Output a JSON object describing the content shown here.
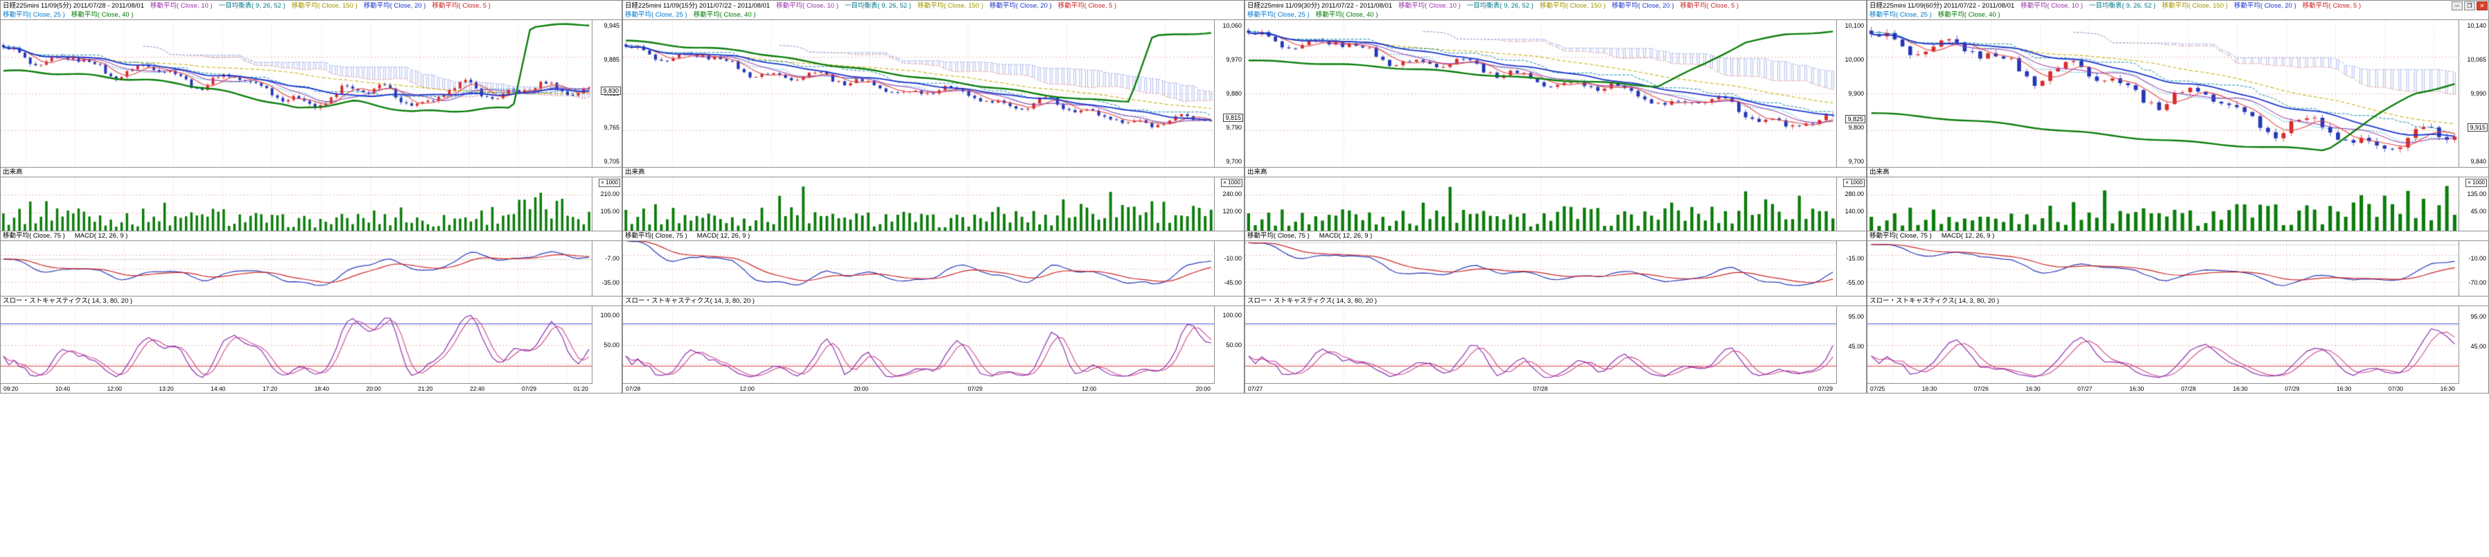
{
  "window_controls": {
    "minimize": "─",
    "restore": "❐",
    "close": "✕"
  },
  "colors": {
    "candle_up": "#d92b2b",
    "candle_down": "#2438b8",
    "ma_fast": "#e04444",
    "ma_mid": "#1a35cc",
    "ma_purple": "#9933aa",
    "ma_slow": "#c9b920",
    "ichimoku1": "#00a0b8",
    "ichimoku2": "#0080a0",
    "cloud_bull": "#e07878",
    "cloud_bear": "#7888dd",
    "overlay_green": "#0b7d0b",
    "volume_bar": "#0b7d0b",
    "macd_line": "#2438b8",
    "macd_signal": "#cc2222",
    "stoch_k": "#8a2fb0",
    "stoch_d": "#cc4488",
    "stoch_upper": "#4455dd",
    "stoch_lower": "#dd4444",
    "grid": "#e9b6b6"
  },
  "panels": [
    {
      "title": "日経225mini 11/09(5分) 2011/07/28 - 2011/08/01",
      "header1": [
        {
          "text": "日経225mini 11/09(5分) 2011/07/28 - 2011/08/01",
          "color": "#000000"
        },
        {
          "text": "移動平均( Close, 10 )",
          "color": "#9933aa"
        },
        {
          "text": "一目均衡表( 9, 26, 52 )",
          "color": "#007788"
        },
        {
          "text": "移動平均( Close, 150 )",
          "color": "#a09500"
        },
        {
          "text": "移動平均( Close, 20 )",
          "color": "#1a35cc"
        },
        {
          "text": "移動平均( Close, 5 )",
          "color": "#cc2222"
        }
      ],
      "header2": [
        {
          "text": "移動平均( Close, 25 )",
          "color": "#0077cc"
        },
        {
          "text": "移動平均( Close, 40 )",
          "color": "#007700"
        }
      ],
      "price_axis": [
        {
          "text": "9,945",
          "f": 0
        },
        {
          "text": "9,885",
          "f": 0.25
        },
        {
          "text": "9,825",
          "f": 0.5
        },
        {
          "text": "9,765",
          "f": 0.75
        },
        {
          "text": "9,705",
          "f": 1
        }
      ],
      "last_price": {
        "text": "9,830",
        "f": 0.48
      },
      "volume_label": "出来高",
      "volume_unit": "× 1000",
      "volume_axis": [
        {
          "text": "210.00",
          "f": 0.3
        },
        {
          "text": "105.00",
          "f": 0.65
        }
      ],
      "macd_label": [
        {
          "text": "移動平均( Close, 75 )",
          "color": "#000000"
        },
        {
          "text": "MACD( 12, 26, 9 )",
          "color": "#000000"
        }
      ],
      "macd_axis": [
        {
          "text": "-7.00",
          "f": 0.3
        },
        {
          "text": "-35.00",
          "f": 0.78
        }
      ],
      "stoch_label": "スロー・ストキャスティクス( 14, 3, 80, 20 )",
      "stoch_axis": [
        {
          "text": "100.00",
          "f": 0.08
        },
        {
          "text": "50.00",
          "f": 0.5
        }
      ],
      "times": [
        "09:20",
        "10:40",
        "12:00",
        "13:20",
        "14:40",
        "17:20",
        "18:40",
        "20:00",
        "21:20",
        "22:40",
        "07/29",
        "01:20"
      ]
    },
    {
      "title": "日経225mini 11/09(15分) 2011/07/22 - 2011/08/01",
      "header1": [
        {
          "text": "日経225mini 11/09(15分) 2011/07/22 - 2011/08/01",
          "color": "#000000"
        },
        {
          "text": "移動平均( Close, 10 )",
          "color": "#9933aa"
        },
        {
          "text": "一目均衡表( 9, 26, 52 )",
          "color": "#007788"
        },
        {
          "text": "移動平均( Close, 150 )",
          "color": "#a09500"
        },
        {
          "text": "移動平均( Close, 20 )",
          "color": "#1a35cc"
        },
        {
          "text": "移動平均( Close, 5 )",
          "color": "#cc2222"
        }
      ],
      "header2": [
        {
          "text": "移動平均( Close, 25 )",
          "color": "#0077cc"
        },
        {
          "text": "移動平均( Close, 40 )",
          "color": "#007700"
        }
      ],
      "price_axis": [
        {
          "text": "10,060",
          "f": 0
        },
        {
          "text": "9,970",
          "f": 0.25
        },
        {
          "text": "9,880",
          "f": 0.5
        },
        {
          "text": "9,790",
          "f": 0.75
        },
        {
          "text": "9,700",
          "f": 1
        }
      ],
      "last_price": {
        "text": "9,815",
        "f": 0.68
      },
      "volume_label": "出来高",
      "volume_unit": "× 1000",
      "volume_axis": [
        {
          "text": "240.00",
          "f": 0.3
        },
        {
          "text": "120.00",
          "f": 0.65
        }
      ],
      "macd_label": [
        {
          "text": "移動平均( Close, 75 )",
          "color": "#000000"
        },
        {
          "text": "MACD( 12, 26, 9 )",
          "color": "#000000"
        }
      ],
      "macd_axis": [
        {
          "text": "-10.00",
          "f": 0.3
        },
        {
          "text": "-45.00",
          "f": 0.78
        }
      ],
      "stoch_label": "スロー・ストキャスティクス( 14, 3, 80, 20 )",
      "stoch_axis": [
        {
          "text": "100.00",
          "f": 0.08
        },
        {
          "text": "50.00",
          "f": 0.5
        }
      ],
      "times": [
        "07/28",
        "12:00",
        "20:00",
        "07/29",
        "12:00",
        "20:00"
      ]
    },
    {
      "title": "日経225mini 11/09(30分) 2011/07/22 - 2011/08/01",
      "header1": [
        {
          "text": "日経225mini 11/09(30分) 2011/07/22 - 2011/08/01",
          "color": "#000000"
        },
        {
          "text": "移動平均( Close, 10 )",
          "color": "#9933aa"
        },
        {
          "text": "一目均衡表( 9, 26, 52 )",
          "color": "#007788"
        },
        {
          "text": "移動平均( Close, 150 )",
          "color": "#a09500"
        },
        {
          "text": "移動平均( Close, 20 )",
          "color": "#1a35cc"
        },
        {
          "text": "移動平均( Close, 5 )",
          "color": "#cc2222"
        }
      ],
      "header2": [
        {
          "text": "移動平均( Close, 25 )",
          "color": "#0077cc"
        },
        {
          "text": "移動平均( Close, 40 )",
          "color": "#007700"
        }
      ],
      "price_axis": [
        {
          "text": "10,100",
          "f": 0
        },
        {
          "text": "10,000",
          "f": 0.25
        },
        {
          "text": "9,900",
          "f": 0.5
        },
        {
          "text": "9,800",
          "f": 0.75
        },
        {
          "text": "9,700",
          "f": 1
        }
      ],
      "last_price": {
        "text": "9,825",
        "f": 0.69
      },
      "volume_label": "出来高",
      "volume_unit": "× 1000",
      "volume_axis": [
        {
          "text": "280.00",
          "f": 0.3
        },
        {
          "text": "140.00",
          "f": 0.65
        }
      ],
      "macd_label": [
        {
          "text": "移動平均( Close, 75 )",
          "color": "#000000"
        },
        {
          "text": "MACD( 12, 26, 9 )",
          "color": "#000000"
        }
      ],
      "macd_axis": [
        {
          "text": "-15.00",
          "f": 0.3
        },
        {
          "text": "-55.00",
          "f": 0.78
        }
      ],
      "stoch_label": "スロー・ストキャスティクス( 14, 3, 80, 20 )",
      "stoch_axis": [
        {
          "text": "95.00",
          "f": 0.1
        },
        {
          "text": "45.00",
          "f": 0.52
        }
      ],
      "times": [
        "07/27",
        "07/28",
        "07/29"
      ]
    },
    {
      "title": "日経225mini 11/09(60分) 2011/07/22 - 2011/08/01",
      "header1": [
        {
          "text": "日経225mini 11/09(60分) 2011/07/22 - 2011/08/01",
          "color": "#000000"
        },
        {
          "text": "移動平均( Close, 10 )",
          "color": "#9933aa"
        },
        {
          "text": "一目均衡表( 9, 26, 52 )",
          "color": "#007788"
        },
        {
          "text": "移動平均( Close, 150 )",
          "color": "#a09500"
        },
        {
          "text": "移動平均( Close, 20 )",
          "color": "#1a35cc"
        },
        {
          "text": "移動平均( Close, 5 )",
          "color": "#cc2222"
        }
      ],
      "header2": [
        {
          "text": "移動平均( Close, 25 )",
          "color": "#0077cc"
        },
        {
          "text": "移動平均( Close, 40 )",
          "color": "#007700"
        }
      ],
      "price_axis": [
        {
          "text": "10,140",
          "f": 0
        },
        {
          "text": "10,065",
          "f": 0.25
        },
        {
          "text": "9,990",
          "f": 0.5
        },
        {
          "text": "9,915",
          "f": 0.75
        },
        {
          "text": "9,840",
          "f": 1
        }
      ],
      "last_price": {
        "text": "9,915",
        "f": 0.75
      },
      "volume_label": "出来高",
      "volume_unit": "× 1000",
      "volume_axis": [
        {
          "text": "135.00",
          "f": 0.3
        },
        {
          "text": "45.00",
          "f": 0.65
        }
      ],
      "macd_label": [
        {
          "text": "移動平均( Close, 75 )",
          "color": "#000000"
        },
        {
          "text": "MACD( 12, 26, 9 )",
          "color": "#000000"
        }
      ],
      "macd_axis": [
        {
          "text": "-10.00",
          "f": 0.3
        },
        {
          "text": "-70.00",
          "f": 0.78
        }
      ],
      "stoch_label": "スロー・ストキャスティクス( 14, 3, 80, 20 )",
      "stoch_axis": [
        {
          "text": "95.00",
          "f": 0.1
        },
        {
          "text": "45.00",
          "f": 0.52
        }
      ],
      "times": [
        "07/25",
        "16:30",
        "07/26",
        "16:30",
        "07/27",
        "16:30",
        "07/28",
        "16:30",
        "07/29",
        "16:30",
        "07/30",
        "16:30"
      ]
    }
  ],
  "chart_data": [
    {
      "panel": "日経225mini 11/09 5分足",
      "type": "candlestick",
      "bars": 110,
      "wiggle": 6,
      "price_range": [
        9705,
        9945
      ],
      "price_anchors": [
        [
          0,
          9895
        ],
        [
          0.06,
          9875
        ],
        [
          0.12,
          9885
        ],
        [
          0.18,
          9858
        ],
        [
          0.26,
          9868
        ],
        [
          0.33,
          9840
        ],
        [
          0.4,
          9852
        ],
        [
          0.47,
          9825
        ],
        [
          0.53,
          9800
        ],
        [
          0.58,
          9835
        ],
        [
          0.65,
          9828
        ],
        [
          0.72,
          9805
        ],
        [
          0.78,
          9840
        ],
        [
          0.85,
          9820
        ],
        [
          0.92,
          9838
        ],
        [
          1,
          9828
        ]
      ],
      "green_anchors": [
        [
          0,
          9862
        ],
        [
          0.1,
          9858
        ],
        [
          0.2,
          9850
        ],
        [
          0.3,
          9842
        ],
        [
          0.42,
          9820
        ],
        [
          0.5,
          9800
        ],
        [
          0.6,
          9812
        ],
        [
          0.7,
          9795
        ],
        [
          0.8,
          9798
        ],
        [
          0.87,
          9802
        ],
        [
          0.9,
          9935
        ],
        [
          1,
          9938
        ]
      ],
      "vol_anchors": [
        0.5,
        0.7,
        0.4,
        0.3,
        0.5,
        0.35,
        0.3,
        0.45,
        0.3,
        0.5,
        0.8,
        0.6
      ],
      "indicators": {
        "moving_averages": [
          5,
          10,
          20,
          25,
          40,
          150
        ],
        "ichimoku": [
          9,
          26,
          52
        ],
        "macd": [
          12,
          26,
          9
        ],
        "stochastic": [
          14,
          3,
          80,
          20
        ]
      }
    },
    {
      "panel": "日経225mini 11/09 15分足",
      "type": "candlestick",
      "bars": 100,
      "wiggle": 8,
      "price_range": [
        9700,
        10060
      ],
      "price_anchors": [
        [
          0,
          9988
        ],
        [
          0.07,
          9965
        ],
        [
          0.13,
          9975
        ],
        [
          0.2,
          9940
        ],
        [
          0.27,
          9915
        ],
        [
          0.33,
          9930
        ],
        [
          0.4,
          9905
        ],
        [
          0.47,
          9880
        ],
        [
          0.53,
          9895
        ],
        [
          0.6,
          9870
        ],
        [
          0.67,
          9845
        ],
        [
          0.73,
          9860
        ],
        [
          0.8,
          9830
        ],
        [
          0.87,
          9800
        ],
        [
          0.93,
          9820
        ],
        [
          1,
          9815
        ]
      ],
      "green_anchors": [
        [
          0,
          10010
        ],
        [
          0.1,
          9995
        ],
        [
          0.2,
          9985
        ],
        [
          0.3,
          9960
        ],
        [
          0.4,
          9940
        ],
        [
          0.5,
          9920
        ],
        [
          0.6,
          9900
        ],
        [
          0.7,
          9880
        ],
        [
          0.78,
          9865
        ],
        [
          0.86,
          9862
        ],
        [
          0.9,
          10020
        ],
        [
          1,
          10030
        ]
      ],
      "vol_anchors": [
        0.6,
        0.5,
        0.4,
        0.55,
        0.35,
        0.45,
        0.3,
        0.5,
        0.4,
        0.9,
        0.7,
        0.5
      ],
      "indicators": {
        "moving_averages": [
          5,
          10,
          20,
          25,
          40,
          150
        ],
        "ichimoku": [
          9,
          26,
          52
        ],
        "macd": [
          12,
          26,
          9
        ],
        "stochastic": [
          14,
          3,
          80,
          20
        ]
      }
    },
    {
      "panel": "日経225mini 11/09 30分足",
      "type": "candlestick",
      "bars": 88,
      "wiggle": 11,
      "price_range": [
        9700,
        10100
      ],
      "price_anchors": [
        [
          0,
          10055
        ],
        [
          0.08,
          10030
        ],
        [
          0.15,
          10040
        ],
        [
          0.22,
          10005
        ],
        [
          0.3,
          9975
        ],
        [
          0.37,
          9990
        ],
        [
          0.45,
          9950
        ],
        [
          0.52,
          9920
        ],
        [
          0.58,
          9935
        ],
        [
          0.65,
          9900
        ],
        [
          0.72,
          9870
        ],
        [
          0.78,
          9885
        ],
        [
          0.85,
          9850
        ],
        [
          0.92,
          9810
        ],
        [
          1,
          9825
        ]
      ],
      "green_anchors": [
        [
          0,
          9990
        ],
        [
          0.15,
          9980
        ],
        [
          0.3,
          9965
        ],
        [
          0.45,
          9945
        ],
        [
          0.6,
          9930
        ],
        [
          0.7,
          9920
        ],
        [
          0.78,
          9980
        ],
        [
          0.85,
          10040
        ],
        [
          0.92,
          10060
        ],
        [
          1,
          10070
        ]
      ],
      "vol_anchors": [
        0.5,
        0.4,
        0.6,
        0.4,
        0.5,
        0.35,
        0.55,
        0.4,
        0.6,
        0.5,
        0.9,
        0.6
      ],
      "indicators": {
        "moving_averages": [
          5,
          10,
          20,
          25,
          40,
          150
        ],
        "ichimoku": [
          9,
          26,
          52
        ],
        "macd": [
          12,
          26,
          9
        ],
        "stochastic": [
          14,
          3,
          80,
          20
        ]
      }
    },
    {
      "panel": "日経225mini 11/09 60分足",
      "type": "candlestick",
      "bars": 76,
      "wiggle": 12,
      "price_range": [
        9840,
        10140
      ],
      "price_anchors": [
        [
          0,
          10100
        ],
        [
          0.07,
          10080
        ],
        [
          0.14,
          10090
        ],
        [
          0.21,
          10060
        ],
        [
          0.28,
          10030
        ],
        [
          0.35,
          10045
        ],
        [
          0.42,
          10010
        ],
        [
          0.5,
          9975
        ],
        [
          0.57,
          9990
        ],
        [
          0.64,
          9950
        ],
        [
          0.7,
          9915
        ],
        [
          0.76,
          9930
        ],
        [
          0.82,
          9895
        ],
        [
          0.88,
          9882
        ],
        [
          0.93,
          9895
        ],
        [
          1,
          9915
        ]
      ],
      "green_anchors": [
        [
          0,
          9950
        ],
        [
          0.12,
          9940
        ],
        [
          0.25,
          9925
        ],
        [
          0.4,
          9905
        ],
        [
          0.55,
          9890
        ],
        [
          0.68,
          9880
        ],
        [
          0.78,
          9875
        ],
        [
          0.86,
          9940
        ],
        [
          0.93,
          9990
        ],
        [
          1,
          10010
        ]
      ],
      "vol_anchors": [
        0.4,
        0.5,
        0.35,
        0.6,
        0.4,
        0.5,
        0.45,
        0.6,
        0.5,
        0.7,
        0.9,
        0.7
      ],
      "indicators": {
        "moving_averages": [
          5,
          10,
          20,
          25,
          40,
          150
        ],
        "ichimoku": [
          9,
          26,
          52
        ],
        "macd": [
          12,
          26,
          9
        ],
        "stochastic": [
          14,
          3,
          80,
          20
        ]
      }
    }
  ]
}
